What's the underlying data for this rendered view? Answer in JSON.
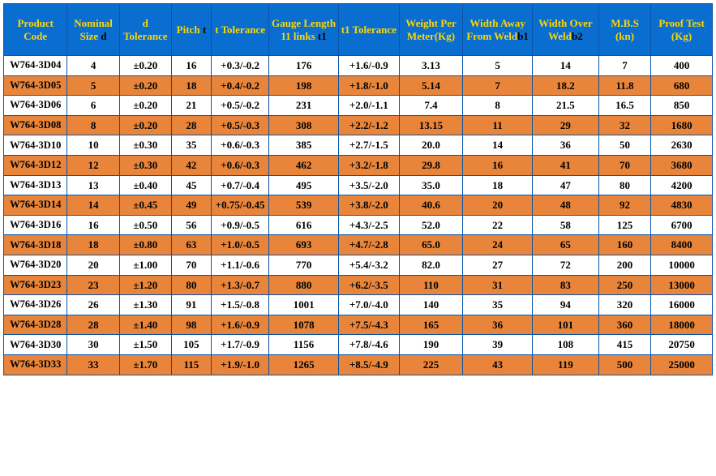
{
  "table": {
    "header_bg": "#0a6ed1",
    "header_fg": "#ffd700",
    "header_sub_fg": "#000000",
    "border_color": "#0a53a5",
    "row_odd_bg": "#ffffff",
    "row_even_bg": "#e8853b",
    "columns": [
      {
        "label": "Product Code",
        "sub": "",
        "width": "8.8%"
      },
      {
        "label": "Nominal Size ",
        "sub": "d",
        "width": "7.2%"
      },
      {
        "label": "d Tolerance",
        "sub": "",
        "width": "7.2%"
      },
      {
        "label": "Pitch ",
        "sub": "t",
        "width": "5.5%"
      },
      {
        "label": "t Tolerance",
        "sub": "",
        "width": "8.0%"
      },
      {
        "label": "Gauge Length 11 links ",
        "sub": "t1",
        "width": "9.6%"
      },
      {
        "label": "t1 Tolerance",
        "sub": "",
        "width": "8.4%"
      },
      {
        "label": "Weight Per Meter(Kg)",
        "sub": "",
        "width": "8.8%"
      },
      {
        "label": "Width Away From Weld",
        "sub": "b1",
        "width": "9.6%"
      },
      {
        "label": "Width Over Weld",
        "sub": "b2",
        "width": "9.2%"
      },
      {
        "label": "M.B.S (kn)",
        "sub": "",
        "width": "7.2%"
      },
      {
        "label": "Proof Test (Kg)",
        "sub": "",
        "width": "8.5%"
      }
    ],
    "rows": [
      [
        "W764-3D04",
        "4",
        "±0.20",
        "16",
        "+0.3/-0.2",
        "176",
        "+1.6/-0.9",
        "3.13",
        "5",
        "14",
        "7",
        "400"
      ],
      [
        "W764-3D05",
        "5",
        "±0.20",
        "18",
        "+0.4/-0.2",
        "198",
        "+1.8/-1.0",
        "5.14",
        "7",
        "18.2",
        "11.8",
        "680"
      ],
      [
        "W764-3D06",
        "6",
        "±0.20",
        "21",
        "+0.5/-0.2",
        "231",
        "+2.0/-1.1",
        "7.4",
        "8",
        "21.5",
        "16.5",
        "850"
      ],
      [
        "W764-3D08",
        "8",
        "±0.20",
        "28",
        "+0.5/-0.3",
        "308",
        "+2.2/-1.2",
        "13.15",
        "11",
        "29",
        "32",
        "1680"
      ],
      [
        "W764-3D10",
        "10",
        "±0.30",
        "35",
        "+0.6/-0.3",
        "385",
        "+2.7/-1.5",
        "20.0",
        "14",
        "36",
        "50",
        "2630"
      ],
      [
        "W764-3D12",
        "12",
        "±0.30",
        "42",
        "+0.6/-0.3",
        "462",
        "+3.2/-1.8",
        "29.8",
        "16",
        "41",
        "70",
        "3680"
      ],
      [
        "W764-3D13",
        "13",
        "±0.40",
        "45",
        "+0.7/-0.4",
        "495",
        "+3.5/-2.0",
        "35.0",
        "18",
        "47",
        "80",
        "4200"
      ],
      [
        "W764-3D14",
        "14",
        "±0.45",
        "49",
        "+0.75/-0.45",
        "539",
        "+3.8/-2.0",
        "40.6",
        "20",
        "48",
        "92",
        "4830"
      ],
      [
        "W764-3D16",
        "16",
        "±0.50",
        "56",
        "+0.9/-0.5",
        "616",
        "+4.3/-2.5",
        "52.0",
        "22",
        "58",
        "125",
        "6700"
      ],
      [
        "W764-3D18",
        "18",
        "±0.80",
        "63",
        "+1.0/-0.5",
        "693",
        "+4.7/-2.8",
        "65.0",
        "24",
        "65",
        "160",
        "8400"
      ],
      [
        "W764-3D20",
        "20",
        "±1.00",
        "70",
        "+1.1/-0.6",
        "770",
        "+5.4/-3.2",
        "82.0",
        "27",
        "72",
        "200",
        "10000"
      ],
      [
        "W764-3D23",
        "23",
        "±1.20",
        "80",
        "+1.3/-0.7",
        "880",
        "+6.2/-3.5",
        "110",
        "31",
        "83",
        "250",
        "13000"
      ],
      [
        "W764-3D26",
        "26",
        "±1.30",
        "91",
        "+1.5/-0.8",
        "1001",
        "+7.0/-4.0",
        "140",
        "35",
        "94",
        "320",
        "16000"
      ],
      [
        "W764-3D28",
        "28",
        "±1.40",
        "98",
        "+1.6/-0.9",
        "1078",
        "+7.5/-4.3",
        "165",
        "36",
        "101",
        "360",
        "18000"
      ],
      [
        "W764-3D30",
        "30",
        "±1.50",
        "105",
        "+1.7/-0.9",
        "1156",
        "+7.8/-4.6",
        "190",
        "39",
        "108",
        "415",
        "20750"
      ],
      [
        "W764-3D33",
        "33",
        "±1.70",
        "115",
        "+1.9/-1.0",
        "1265",
        "+8.5/-4.9",
        "225",
        "43",
        "119",
        "500",
        "25000"
      ]
    ]
  }
}
